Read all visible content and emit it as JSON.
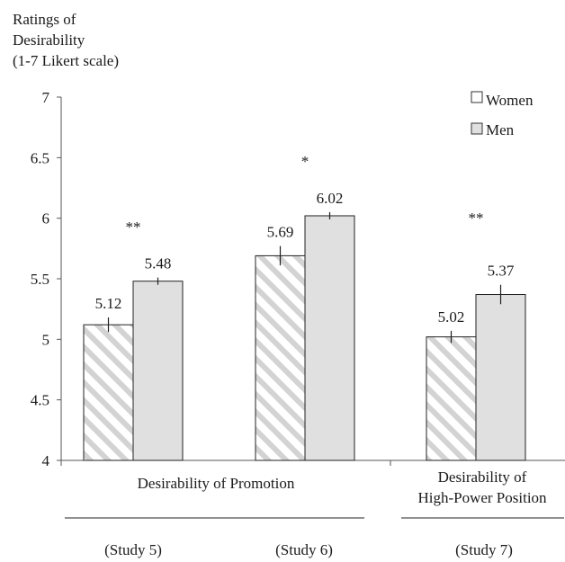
{
  "chart_data": {
    "type": "bar",
    "ylabel_lines": [
      "Ratings of",
      "Desirability",
      "(1-7 Likert scale)"
    ],
    "ylim": [
      4,
      7
    ],
    "yticks": [
      "4",
      "4.5",
      "5",
      "5.5",
      "6",
      "6.5",
      "7"
    ],
    "legend": {
      "placement": "top-right",
      "items": [
        "Women",
        "Men"
      ]
    },
    "categories": [
      "(Study 5)",
      "(Study 6)",
      "(Study 7)"
    ],
    "series": [
      {
        "name": "Women",
        "values": [
          5.12,
          5.69,
          5.02
        ],
        "labels": [
          "5.12",
          "5.69",
          "5.02"
        ],
        "errors": [
          0.06,
          0.08,
          0.05
        ],
        "pattern": "hatched"
      },
      {
        "name": "Men",
        "values": [
          5.48,
          6.02,
          5.37
        ],
        "labels": [
          "5.48",
          "6.02",
          "5.37"
        ],
        "errors": [
          0.03,
          0.03,
          0.08
        ],
        "color": "#e0e0e0"
      }
    ],
    "significance": [
      "**",
      "*",
      "**"
    ],
    "group_labels": [
      {
        "lines": [
          "Desirability of Promotion"
        ],
        "studies": [
          0,
          1
        ]
      },
      {
        "lines": [
          "Desirability of",
          "High-Power Position"
        ],
        "studies": [
          2
        ]
      }
    ],
    "grid": false
  }
}
